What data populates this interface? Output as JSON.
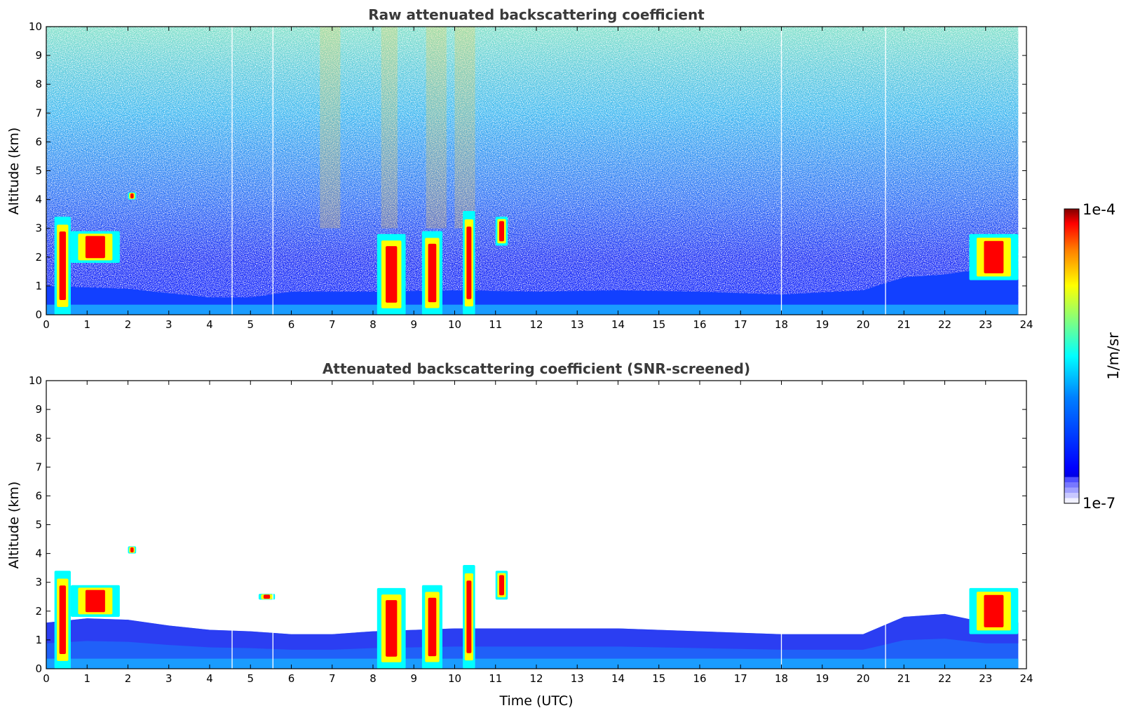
{
  "chart_data": [
    {
      "type": "heatmap",
      "title": "Raw attenuated backscattering coefficient",
      "xlabel": "",
      "ylabel": "Altitude (km)",
      "xlim": [
        0,
        24
      ],
      "ylim": [
        0,
        10
      ],
      "xticks": [
        0,
        1,
        2,
        3,
        4,
        5,
        6,
        7,
        8,
        9,
        10,
        11,
        12,
        13,
        14,
        15,
        16,
        17,
        18,
        19,
        20,
        21,
        22,
        23,
        24
      ],
      "yticks": [
        0,
        1,
        2,
        3,
        4,
        5,
        6,
        7,
        8,
        9,
        10
      ],
      "boundary_layer_top_km": [
        {
          "x": 0,
          "y": 1.0
        },
        {
          "x": 2,
          "y": 0.9
        },
        {
          "x": 3,
          "y": 0.75
        },
        {
          "x": 4,
          "y": 0.6
        },
        {
          "x": 5,
          "y": 0.6
        },
        {
          "x": 6,
          "y": 0.8
        },
        {
          "x": 8,
          "y": 0.8
        },
        {
          "x": 10,
          "y": 0.85
        },
        {
          "x": 12,
          "y": 0.8
        },
        {
          "x": 14,
          "y": 0.85
        },
        {
          "x": 16,
          "y": 0.8
        },
        {
          "x": 18,
          "y": 0.7
        },
        {
          "x": 20,
          "y": 0.85
        },
        {
          "x": 21,
          "y": 1.3
        },
        {
          "x": 22,
          "y": 1.4
        },
        {
          "x": 23,
          "y": 1.6
        },
        {
          "x": 23.8,
          "y": 1.6
        }
      ],
      "cloud_features": [
        {
          "x_start": 0.2,
          "x_end": 0.6,
          "y_bottom": 0,
          "y_top": 3.4
        },
        {
          "x_start": 0.6,
          "x_end": 1.8,
          "y_bottom": 1.8,
          "y_top": 2.9
        },
        {
          "x_start": 2.0,
          "x_end": 2.2,
          "y_bottom": 4.0,
          "y_top": 4.25
        },
        {
          "x_start": 8.1,
          "x_end": 8.8,
          "y_bottom": 0,
          "y_top": 2.8
        },
        {
          "x_start": 9.2,
          "x_end": 9.7,
          "y_bottom": 0,
          "y_top": 2.9
        },
        {
          "x_start": 10.2,
          "x_end": 10.5,
          "y_bottom": 0,
          "y_top": 3.6
        },
        {
          "x_start": 11.0,
          "x_end": 11.3,
          "y_bottom": 2.4,
          "y_top": 3.4
        },
        {
          "x_start": 22.6,
          "x_end": 23.8,
          "y_bottom": 1.2,
          "y_top": 2.8
        }
      ],
      "grid": false
    },
    {
      "type": "heatmap",
      "title": "Attenuated backscattering coefficient (SNR-screened)",
      "xlabel": "Time (UTC)",
      "ylabel": "Altitude (km)",
      "xlim": [
        0,
        24
      ],
      "ylim": [
        0,
        10
      ],
      "xticks": [
        0,
        1,
        2,
        3,
        4,
        5,
        6,
        7,
        8,
        9,
        10,
        11,
        12,
        13,
        14,
        15,
        16,
        17,
        18,
        19,
        20,
        21,
        22,
        23,
        24
      ],
      "yticks": [
        0,
        1,
        2,
        3,
        4,
        5,
        6,
        7,
        8,
        9,
        10
      ],
      "boundary_layer_top_km": [
        {
          "x": 0,
          "y": 1.6
        },
        {
          "x": 1,
          "y": 1.75
        },
        {
          "x": 2,
          "y": 1.7
        },
        {
          "x": 3,
          "y": 1.5
        },
        {
          "x": 4,
          "y": 1.35
        },
        {
          "x": 5,
          "y": 1.3
        },
        {
          "x": 6,
          "y": 1.2
        },
        {
          "x": 7,
          "y": 1.2
        },
        {
          "x": 8,
          "y": 1.3
        },
        {
          "x": 10,
          "y": 1.4
        },
        {
          "x": 12,
          "y": 1.4
        },
        {
          "x": 14,
          "y": 1.4
        },
        {
          "x": 16,
          "y": 1.3
        },
        {
          "x": 18,
          "y": 1.2
        },
        {
          "x": 20,
          "y": 1.2
        },
        {
          "x": 21,
          "y": 1.8
        },
        {
          "x": 22,
          "y": 1.9
        },
        {
          "x": 23,
          "y": 1.6
        },
        {
          "x": 23.8,
          "y": 1.6
        }
      ],
      "cloud_features": [
        {
          "x_start": 0.2,
          "x_end": 0.6,
          "y_bottom": 0,
          "y_top": 3.4
        },
        {
          "x_start": 0.6,
          "x_end": 1.8,
          "y_bottom": 1.8,
          "y_top": 2.9
        },
        {
          "x_start": 2.0,
          "x_end": 2.2,
          "y_bottom": 4.0,
          "y_top": 4.25
        },
        {
          "x_start": 5.2,
          "x_end": 5.6,
          "y_bottom": 2.4,
          "y_top": 2.6
        },
        {
          "x_start": 8.1,
          "x_end": 8.8,
          "y_bottom": 0,
          "y_top": 2.8
        },
        {
          "x_start": 9.2,
          "x_end": 9.7,
          "y_bottom": 0,
          "y_top": 2.9
        },
        {
          "x_start": 10.2,
          "x_end": 10.5,
          "y_bottom": 0,
          "y_top": 3.6
        },
        {
          "x_start": 11.0,
          "x_end": 11.3,
          "y_bottom": 2.4,
          "y_top": 3.4
        },
        {
          "x_start": 22.6,
          "x_end": 23.8,
          "y_bottom": 1.2,
          "y_top": 2.8
        }
      ],
      "grid": false
    }
  ],
  "colorbar": {
    "max_label": "1e-4",
    "min_label": "1e-7",
    "label": "1/m/sr",
    "colormap": "jet",
    "colors": [
      "#00008f",
      "#0000ff",
      "#0080ff",
      "#00ffff",
      "#80ff80",
      "#ffff00",
      "#ff8000",
      "#ff0000",
      "#800000"
    ],
    "light_steps": [
      "#f0f0ff",
      "#c8c8ff",
      "#a0a0ff",
      "#7878ff",
      "#5050ff"
    ]
  }
}
